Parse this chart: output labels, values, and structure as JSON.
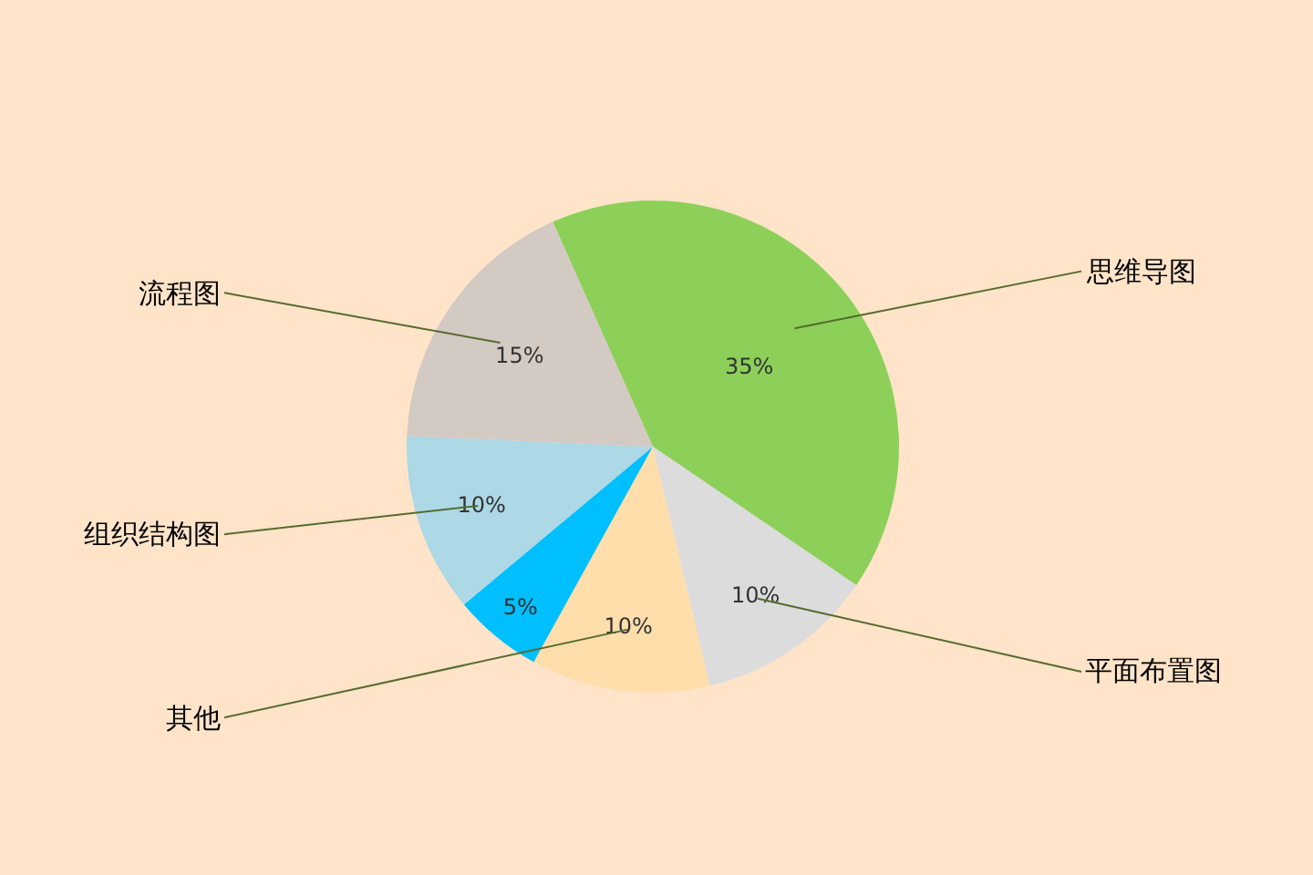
{
  "chart_data": {
    "type": "pie",
    "categories": [
      "思维导图",
      "平面布置图",
      "其他",
      null,
      "组织结构图",
      "流程图"
    ],
    "values": [
      35,
      10,
      10,
      5,
      10,
      15
    ],
    "colors": [
      "#8cd05a",
      "#dcdcdc",
      "#ffdeab",
      "#00bfff",
      "#add8e6",
      "#d4cac4"
    ],
    "value_labels": [
      "35%",
      "10%",
      "10%",
      "5%",
      "10%",
      "15%"
    ],
    "legend": false
  }
}
